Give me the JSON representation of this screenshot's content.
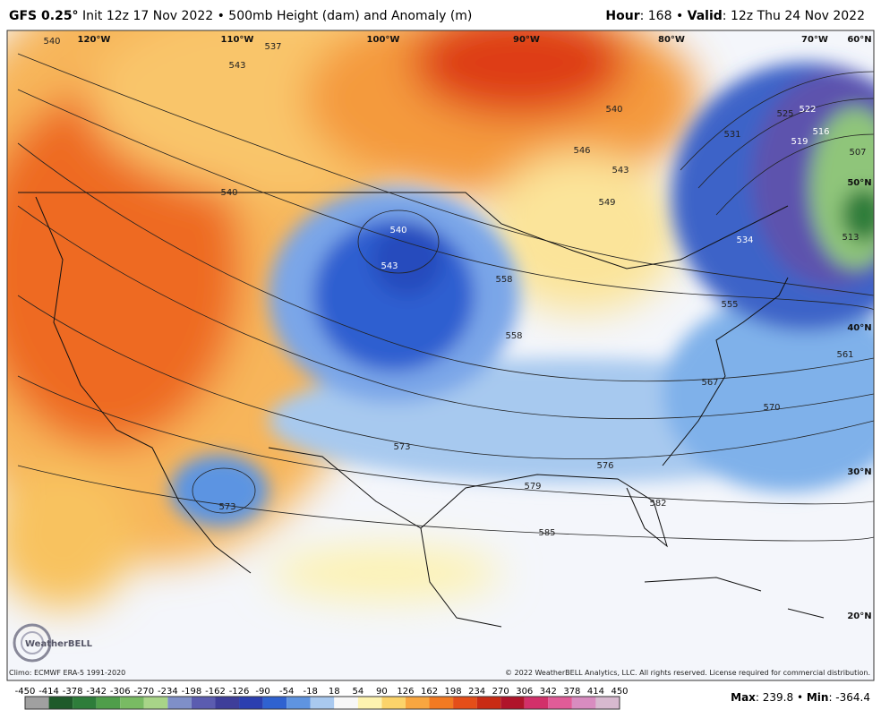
{
  "header": {
    "model": "GFS 0.25°",
    "title": "Init 12z 17 Nov 2022 • 500mb Height (dam) and Anomaly (m)",
    "hour_label": "Hour",
    "hour_value": ": 168 • ",
    "valid_label": "Valid",
    "valid_value": ": 12z Thu 24 Nov 2022"
  },
  "map": {
    "longitudes": [
      "120°W",
      "110°W",
      "100°W",
      "90°W",
      "80°W",
      "70°W"
    ],
    "latitudes": [
      "60°N",
      "50°N",
      "40°N",
      "30°N",
      "20°N"
    ],
    "contours": [
      "540",
      "543",
      "537",
      "540",
      "540",
      "546",
      "543",
      "549",
      "540",
      "543",
      "558",
      "555",
      "561",
      "567",
      "570",
      "573",
      "576",
      "579",
      "582",
      "585",
      "573",
      "531",
      "525",
      "522",
      "519",
      "516",
      "534",
      "513",
      "507",
      "558"
    ],
    "logo": "WeatherBELL",
    "climo": "Climo: ECMWF ERA-5 1991-2020",
    "copyright": "© 2022 WeatherBELL Analytics, LLC. All rights reserved. License required for commercial distribution."
  },
  "colorbar": {
    "labels": [
      "-450",
      "-414",
      "-378",
      "-342",
      "-306",
      "-270",
      "-234",
      "-198",
      "-162",
      "-126",
      "-90",
      "-54",
      "-18",
      "18",
      "54",
      "90",
      "126",
      "162",
      "198",
      "234",
      "270",
      "306",
      "342",
      "378",
      "414",
      "450"
    ],
    "colors": [
      "#a0a0a0",
      "#1f5a2a",
      "#2e7d3a",
      "#4f9e4a",
      "#79bb63",
      "#a8d488",
      "#7f8fc8",
      "#5b5cb0",
      "#3e3e9a",
      "#2b3fb0",
      "#2f62d0",
      "#5f94e0",
      "#a9c9ef",
      "#f7f7f7",
      "#fdf3b0",
      "#fbd36a",
      "#f8a640",
      "#f27a22",
      "#e44e19",
      "#c92b14",
      "#b0142a",
      "#d2306a",
      "#e05c98",
      "#d88cc0",
      "#d7b9cf"
    ]
  },
  "footer": {
    "max_label": "Max",
    "max_value": ": 239.8 • ",
    "min_label": "Min",
    "min_value": ": -364.4"
  }
}
